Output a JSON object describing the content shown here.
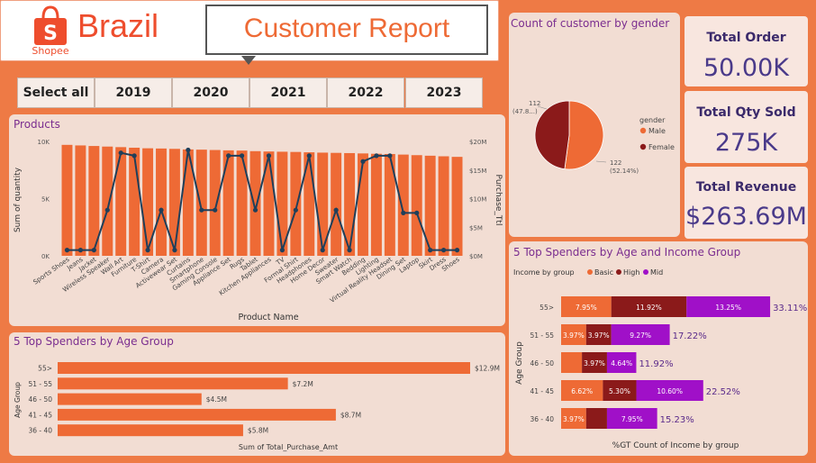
{
  "header": {
    "brand_logo_text": "Shopee",
    "country": "Brazil",
    "report_title": "Customer Report"
  },
  "slicer": {
    "items": [
      "Select all",
      "2019",
      "2020",
      "2021",
      "2022",
      "2023"
    ]
  },
  "colors": {
    "background": "#ee7a45",
    "panel": "#f2ddd3",
    "orange": "#ee6a35",
    "dark_red": "#8b1a1a",
    "purple": "#a010c8",
    "navy_line": "#1f3f5a",
    "title_purple": "#7a2d8f"
  },
  "kpis": [
    {
      "label": "Total Order",
      "value": "50.00K"
    },
    {
      "label": "Total Qty Sold",
      "value": "275K"
    },
    {
      "label": "Total Revenue",
      "value": "$263.69M"
    }
  ],
  "chart_data": [
    {
      "id": "products",
      "type": "bar",
      "title": "Products",
      "xlabel": "Product Name",
      "ylabel": "Sum of quantity",
      "y2label": "Purchase_Ttl",
      "y_ticks": [
        "0K",
        "5K",
        "10K"
      ],
      "y2_ticks": [
        "$0M",
        "$5M",
        "$10M",
        "$15M",
        "$20M"
      ],
      "ylim": [
        0,
        10000
      ],
      "y2lim": [
        0,
        20
      ],
      "categories": [
        "Sports Shoes",
        "Jeans",
        "Jacket",
        "Wireless Speaker",
        "Wall Art",
        "Furniture",
        "T-Shirt",
        "Camera",
        "Activewear Set",
        "Curtains",
        "Smartphone",
        "Gaming Console",
        "Appliance Set",
        "Rugs",
        "Tablet",
        "Kitchen Appliances",
        "TV",
        "Formal Shirt",
        "Headphones",
        "Home Decor",
        "Sweater",
        "Smart Watch",
        "Bedding",
        "Lighting",
        "Virtual Reality Headset",
        "Dining Set",
        "Laptop",
        "Skirt",
        "Dress",
        "Shoes"
      ],
      "series": [
        {
          "type": "bar",
          "axis": "y",
          "values": [
            9700,
            9650,
            9600,
            9550,
            9500,
            9450,
            9400,
            9380,
            9350,
            9300,
            9280,
            9250,
            9220,
            9200,
            9150,
            9120,
            9100,
            9080,
            9050,
            9020,
            9000,
            8980,
            8950,
            8920,
            8900,
            8850,
            8800,
            8750,
            8700,
            8650
          ]
        },
        {
          "type": "line",
          "axis": "y2",
          "values": [
            1,
            1,
            1,
            8,
            18,
            17.5,
            1,
            8,
            1,
            18.5,
            8,
            8,
            17.5,
            17.5,
            8,
            17.5,
            1,
            8,
            17.5,
            1,
            8,
            1,
            16.5,
            17.5,
            17.5,
            7.5,
            7.5,
            1,
            1,
            1
          ]
        }
      ]
    },
    {
      "id": "gender",
      "type": "pie",
      "title": "Count of customer by gender",
      "legend_title": "gender",
      "legend_position": "right",
      "slices": [
        {
          "name": "Male",
          "value": 122,
          "pct": "(52.14%)",
          "color": "#ee6a35"
        },
        {
          "name": "Female",
          "value": 112,
          "pct": "(47.8...)",
          "color": "#8b1a1a"
        }
      ],
      "slice_value_labels": [
        "122",
        "112"
      ]
    },
    {
      "id": "age_group",
      "type": "bar",
      "orientation": "horizontal",
      "title": "5 Top Spenders by Age Group",
      "xlabel": "Sum of Total_Purchase_Amt",
      "ylabel": "Age Group",
      "categories": [
        "55>",
        "51 - 55",
        "46 - 50",
        "41 - 45",
        "36 - 40"
      ],
      "values": [
        12.9,
        7.2,
        4.5,
        8.7,
        5.8
      ],
      "value_labels": [
        "$12.9M",
        "$7.2M",
        "$4.5M",
        "$8.7M",
        "$5.8M"
      ],
      "xlim": [
        0,
        12.9
      ]
    },
    {
      "id": "age_income",
      "type": "bar",
      "orientation": "horizontal",
      "stacked": true,
      "title": "5 Top Spenders by Age and Income Group",
      "legend_title": "Income by group",
      "legend_position": "top-left",
      "xlabel": "%GT Count of Income by group",
      "ylabel": "Age Group",
      "categories": [
        "55>",
        "51 - 55",
        "46 - 50",
        "41 - 45",
        "36 - 40"
      ],
      "series": [
        {
          "name": "Basic",
          "color": "#ee6a35",
          "values": [
            7.95,
            3.97,
            3.3,
            6.62,
            3.97
          ],
          "labels": [
            "7.95%",
            "3.97%",
            "",
            "6.62%",
            "3.97%"
          ]
        },
        {
          "name": "High",
          "color": "#8b1a1a",
          "values": [
            11.92,
            3.97,
            3.97,
            5.3,
            3.3
          ],
          "labels": [
            "11.92%",
            "3.97%",
            "3.97%",
            "5.30%",
            ""
          ]
        },
        {
          "name": "Mid",
          "color": "#a010c8",
          "values": [
            13.25,
            9.27,
            4.64,
            10.6,
            7.95
          ],
          "labels": [
            "13.25%",
            "9.27%",
            "4.64%",
            "10.60%",
            "7.95%"
          ]
        }
      ],
      "totals": [
        "33.11%",
        "17.22%",
        "11.92%",
        "22.52%",
        "15.23%"
      ],
      "xlim": [
        0,
        33.11
      ]
    }
  ]
}
